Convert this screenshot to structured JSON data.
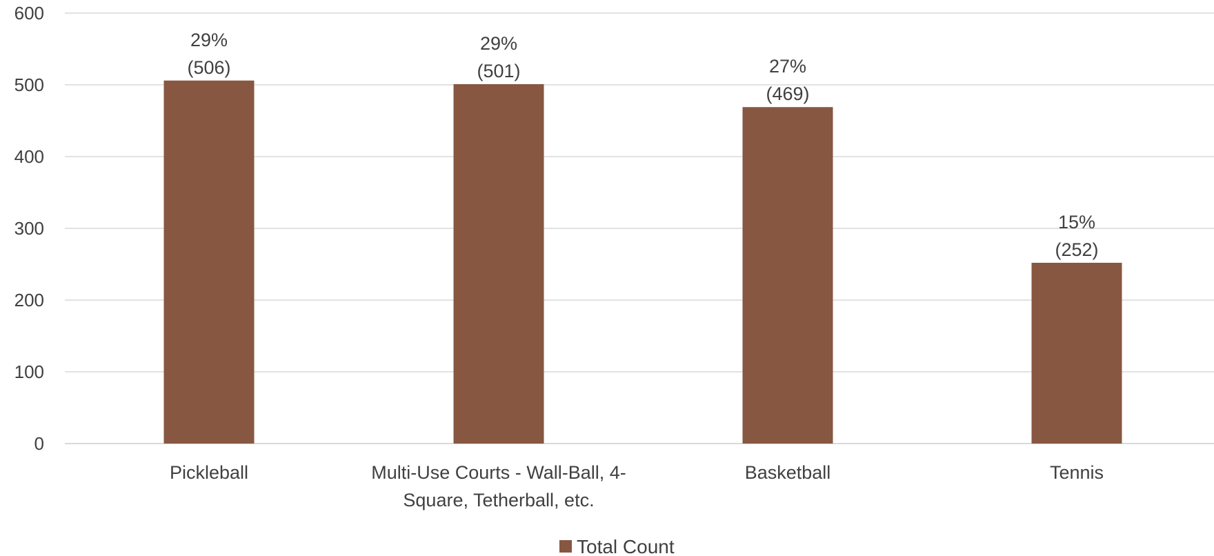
{
  "chart_data": {
    "type": "bar",
    "categories": [
      "Pickleball",
      "Multi-Use Courts - Wall-Ball, 4-Square, Tetherball, etc.",
      "Basketball",
      "Tennis"
    ],
    "category_label_lines": [
      [
        "Pickleball"
      ],
      [
        "Multi-Use Courts - Wall-Ball, 4-",
        "Square, Tetherball, etc."
      ],
      [
        "Basketball"
      ],
      [
        "Tennis"
      ]
    ],
    "series": [
      {
        "name": "Total Count",
        "values": [
          506,
          501,
          469,
          252
        ],
        "color": "#875741"
      }
    ],
    "data_labels": [
      {
        "percent": "29%",
        "count": "(506)"
      },
      {
        "percent": "29%",
        "count": "(501)"
      },
      {
        "percent": "27%",
        "count": "(469)"
      },
      {
        "percent": "15%",
        "count": "(252)"
      }
    ],
    "ylim": [
      0,
      600
    ],
    "yticks": [
      0,
      100,
      200,
      300,
      400,
      500,
      600
    ],
    "title": "",
    "xlabel": "",
    "ylabel": "",
    "grid": true,
    "legend_position": "bottom"
  }
}
